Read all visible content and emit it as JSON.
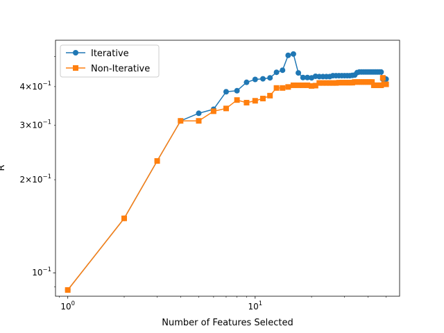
{
  "chart_data": {
    "type": "line",
    "title": "",
    "xlabel": "Number of Features Selected",
    "ylabel": "R",
    "xscale": "log",
    "yscale": "log",
    "xlim": [
      0.86,
      59
    ],
    "ylim": [
      0.084,
      0.565
    ],
    "grid": false,
    "legend_position": "top-left",
    "x_tick_labels": [
      {
        "value": 1,
        "base": "10",
        "exp": "0"
      },
      {
        "value": 10,
        "base": "10",
        "exp": "1"
      }
    ],
    "y_tick_labels": [
      {
        "value": 0.1,
        "mant": "",
        "base": "10",
        "exp": "−1"
      },
      {
        "value": 0.2,
        "mant": "2",
        "base": "10",
        "exp": "−1"
      },
      {
        "value": 0.3,
        "mant": "3",
        "base": "10",
        "exp": "−1"
      },
      {
        "value": 0.4,
        "mant": "4",
        "base": "10",
        "exp": "−1"
      }
    ],
    "series": [
      {
        "name": "Iterative",
        "color": "#1f77b4",
        "marker": "circle",
        "x": [
          1,
          2,
          3,
          4,
          5,
          6,
          7,
          8,
          9,
          10,
          11,
          12,
          13,
          14,
          15,
          16,
          17,
          18,
          19,
          20,
          21,
          22,
          23,
          24,
          25,
          26,
          27,
          28,
          29,
          30,
          31,
          32,
          33,
          34,
          35,
          36,
          37,
          38,
          39,
          40,
          41,
          42,
          43,
          44,
          45,
          46,
          47,
          48,
          49,
          50
        ],
        "y": [
          0.088,
          0.15,
          0.23,
          0.31,
          0.328,
          0.338,
          0.385,
          0.388,
          0.413,
          0.422,
          0.424,
          0.427,
          0.445,
          0.452,
          0.505,
          0.51,
          0.443,
          0.428,
          0.428,
          0.427,
          0.432,
          0.431,
          0.431,
          0.431,
          0.431,
          0.434,
          0.434,
          0.434,
          0.434,
          0.434,
          0.434,
          0.434,
          0.435,
          0.436,
          0.444,
          0.446,
          0.446,
          0.446,
          0.446,
          0.446,
          0.446,
          0.446,
          0.446,
          0.446,
          0.446,
          0.446,
          0.446,
          0.423,
          0.425,
          0.423
        ]
      },
      {
        "name": "Non-Iterative",
        "color": "#ff7f0e",
        "marker": "square",
        "x": [
          1,
          2,
          3,
          4,
          5,
          6,
          7,
          8,
          9,
          10,
          11,
          12,
          13,
          14,
          15,
          16,
          17,
          18,
          19,
          20,
          21,
          22,
          23,
          24,
          25,
          26,
          27,
          28,
          29,
          30,
          31,
          32,
          33,
          34,
          35,
          36,
          37,
          38,
          39,
          40,
          41,
          42,
          43,
          44,
          45,
          46,
          47,
          48,
          49,
          50
        ],
        "y": [
          0.088,
          0.15,
          0.23,
          0.31,
          0.31,
          0.333,
          0.34,
          0.362,
          0.355,
          0.36,
          0.366,
          0.374,
          0.396,
          0.396,
          0.399,
          0.404,
          0.404,
          0.404,
          0.404,
          0.402,
          0.403,
          0.411,
          0.411,
          0.411,
          0.411,
          0.411,
          0.411,
          0.412,
          0.412,
          0.412,
          0.412,
          0.412,
          0.412,
          0.414,
          0.414,
          0.414,
          0.414,
          0.414,
          0.414,
          0.414,
          0.414,
          0.414,
          0.404,
          0.404,
          0.404,
          0.404,
          0.404,
          0.427,
          0.407,
          0.407
        ]
      }
    ]
  }
}
